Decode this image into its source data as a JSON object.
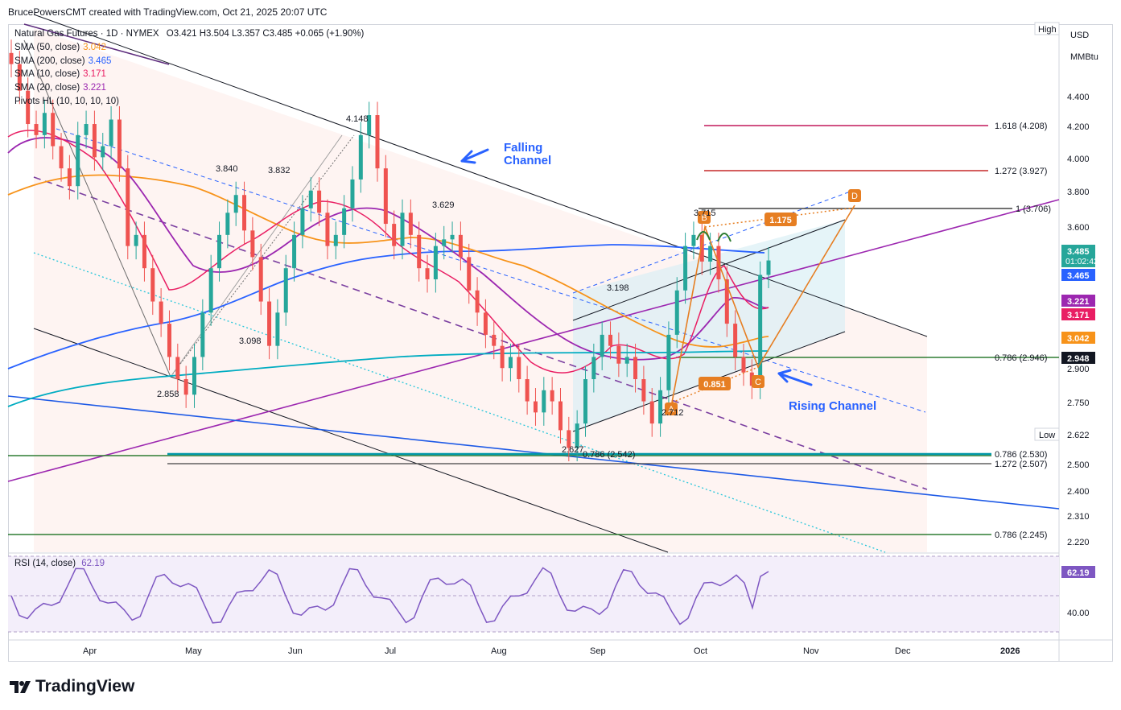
{
  "header": {
    "attribution": "BrucePowersCMT created with TradingView.com, Oct 21, 2025 20:07 UTC"
  },
  "legend": {
    "symbol_line": "Natural Gas Futures · 1D · NYMEX",
    "ohlc": "O3.421  H3.504  L3.357  C3.485  +0.065 (+1.90%)",
    "indicators": [
      {
        "label": "SMA (50, close)",
        "value": "3.042",
        "color": "#f7931a"
      },
      {
        "label": "SMA (200, close)",
        "value": "3.465",
        "color": "#2962ff"
      },
      {
        "label": "SMA (10, close)",
        "value": "3.171",
        "color": "#e91e63"
      },
      {
        "label": "SMA (20, close)",
        "value": "3.221",
        "color": "#9c27b0"
      },
      {
        "label": "Pivots HL (10, 10, 10, 10)",
        "value": "",
        "color": "#131722"
      }
    ],
    "rsi_label": "RSI (14, close)",
    "rsi_value": "62.19"
  },
  "axis": {
    "currency": "USD",
    "unit": "MMBtu",
    "high_tag": "High",
    "low_tag": "Low",
    "low_value": "2.622",
    "price_ticks": [
      "4.400",
      "4.200",
      "4.000",
      "3.800",
      "3.600",
      "2.900",
      "2.750",
      "2.500",
      "2.400",
      "2.310",
      "2.220"
    ],
    "rsi_tick": "40.00",
    "months": [
      "Apr",
      "May",
      "Jun",
      "Jul",
      "Aug",
      "Sep",
      "Oct",
      "Nov",
      "Dec",
      "2026"
    ]
  },
  "price_badges": [
    {
      "text": "3.485",
      "sub": "01:02:42",
      "color": "#26a69a"
    },
    {
      "text": "3.465",
      "color": "#2962ff"
    },
    {
      "text": "3.221",
      "color": "#9c27b0"
    },
    {
      "text": "3.171",
      "color": "#e91e63"
    },
    {
      "text": "3.042",
      "color": "#f7931a"
    },
    {
      "text": "2.948",
      "color": "#131722"
    },
    {
      "text": "62.19",
      "color": "#7e57c2"
    }
  ],
  "fib_levels": [
    {
      "label": "1.618 (4.208)",
      "color": "#c2185b"
    },
    {
      "label": "1.272 (3.927)",
      "color": "#c62828"
    },
    {
      "label": "1 (3.706)",
      "color": "#424242"
    },
    {
      "label": "0.786 (2.946)",
      "color": "#2e7d32"
    },
    {
      "label": "0.786 (2.530)",
      "color": "#2e7d32"
    },
    {
      "label": "1.272 (2.507)",
      "color": "#424242"
    },
    {
      "label": "0.786 (2.245)",
      "color": "#2e7d32"
    },
    {
      "label": "0.786 (2.542)",
      "color": "#0097a7"
    }
  ],
  "annotations": {
    "falling_channel": [
      "Falling",
      "Channel"
    ],
    "rising_channel": "Rising Channel",
    "pivot_labels": [
      "4.148",
      "3.840",
      "3.832",
      "3.629",
      "3.198",
      "3.098",
      "2.858",
      "2.627",
      "2.712",
      "3.715"
    ],
    "abcd": [
      "A",
      "B",
      "C",
      "D"
    ],
    "ratio_175": "1.175",
    "ratio_851": "0.851"
  },
  "chart_data": {
    "type": "candlestick",
    "title": "Natural Gas Futures · 1D · NYMEX",
    "ylim": [
      2.17,
      4.55
    ],
    "x_months": [
      "Apr",
      "May",
      "Jun",
      "Jul",
      "Aug",
      "Sep",
      "Oct",
      "Nov",
      "Dec",
      "2026"
    ],
    "ohlc_last": {
      "open": 3.421,
      "high": 3.504,
      "low": 3.357,
      "close": 3.485
    },
    "close_path": [
      4.37,
      4.25,
      4.1,
      4.05,
      4.15,
      4.0,
      3.9,
      3.82,
      4.05,
      4.1,
      3.95,
      4.0,
      4.12,
      3.9,
      3.55,
      3.6,
      3.45,
      3.3,
      3.2,
      3.05,
      2.95,
      2.88,
      3.05,
      3.25,
      3.45,
      3.6,
      3.7,
      3.78,
      3.62,
      3.5,
      3.3,
      3.1,
      3.25,
      3.45,
      3.6,
      3.72,
      3.8,
      3.7,
      3.55,
      3.6,
      3.72,
      3.85,
      4.05,
      4.14,
      3.9,
      3.65,
      3.55,
      3.7,
      3.6,
      3.45,
      3.4,
      3.55,
      3.58,
      3.6,
      3.5,
      3.35,
      3.25,
      3.15,
      3.1,
      3.0,
      3.05,
      2.95,
      2.85,
      2.8,
      2.9,
      2.85,
      2.72,
      2.64,
      2.75,
      2.95,
      3.05,
      3.15,
      3.1,
      3.02,
      3.05,
      2.95,
      2.85,
      2.75,
      2.9,
      3.15,
      3.35,
      3.55,
      3.6,
      3.48,
      3.55,
      3.4,
      3.2,
      3.05,
      2.98,
      2.92,
      3.42,
      3.485
    ],
    "sma_values": {
      "sma50": 3.042,
      "sma200": 3.465,
      "sma10": 3.171,
      "sma20": 3.221
    },
    "rsi": {
      "value": 62.19,
      "tick": 40.0
    },
    "fib": [
      4.208,
      3.927,
      3.706,
      2.946,
      2.53,
      2.507,
      2.245,
      2.542
    ],
    "pivots": [
      4.148,
      3.84,
      3.832,
      3.629,
      3.198,
      3.098,
      2.858,
      2.627,
      2.712,
      3.715
    ],
    "abcd_ratios": [
      1.175,
      0.851
    ]
  }
}
